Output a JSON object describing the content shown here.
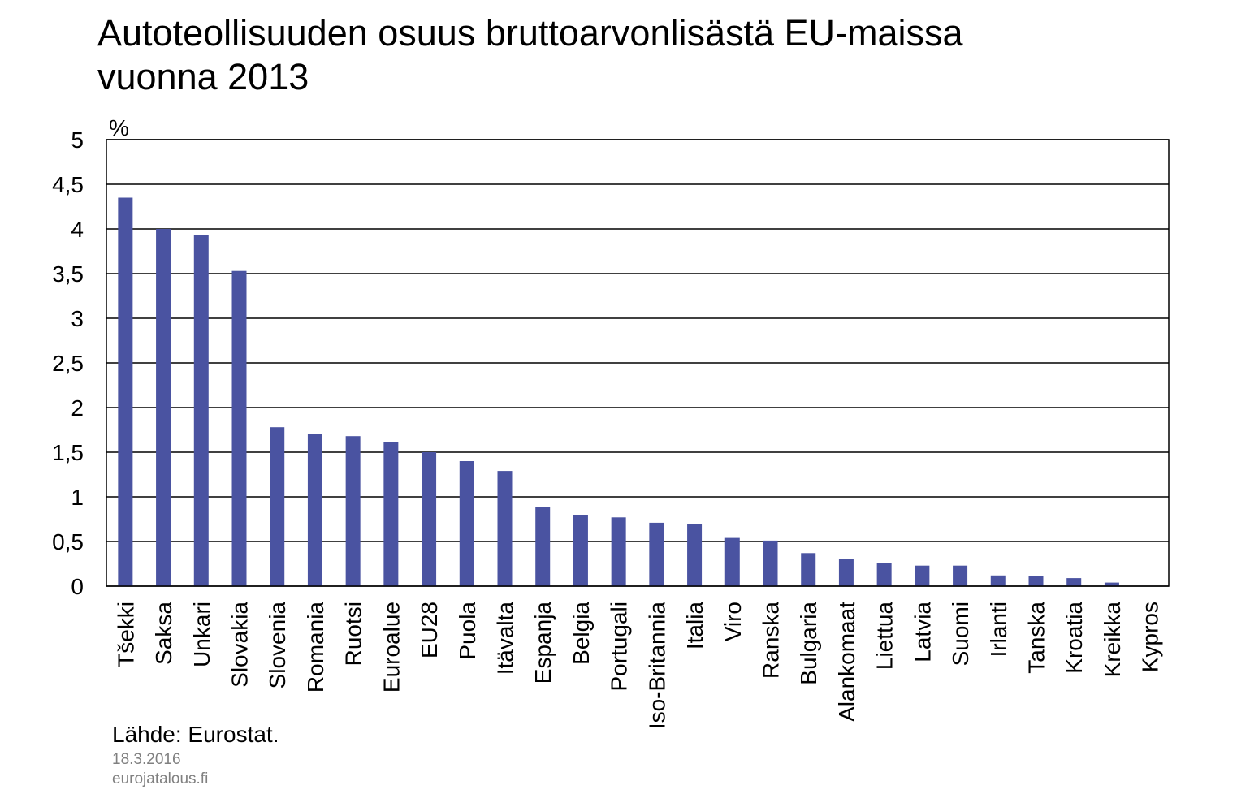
{
  "chart_data": {
    "type": "bar",
    "title_line1": "Autoteollisuuden osuus bruttoarvonlisästä EU-maissa",
    "title_line2": "vuonna 2013",
    "ylabel": "%",
    "xlabel": "",
    "ylim": [
      0,
      5
    ],
    "yticks": [
      0,
      0.5,
      1,
      1.5,
      2,
      2.5,
      3,
      3.5,
      4,
      4.5,
      5
    ],
    "ytick_labels": [
      "0",
      "0,5",
      "1",
      "1,5",
      "2",
      "2,5",
      "3",
      "3,5",
      "4",
      "4,5",
      "5"
    ],
    "grid": true,
    "categories": [
      "Tšekki",
      "Saksa",
      "Unkari",
      "Slovakia",
      "Slovenia",
      "Romania",
      "Ruotsi",
      "Euroalue",
      "EU28",
      "Puola",
      "Itävalta",
      "Espanja",
      "Belgia",
      "Portugali",
      "Iso-Britannia",
      "Italia",
      "Viro",
      "Ranska",
      "Bulgaria",
      "Alankomaat",
      "Liettua",
      "Latvia",
      "Suomi",
      "Irlanti",
      "Tanska",
      "Kroatia",
      "Kreikka",
      "Kypros"
    ],
    "values": [
      4.35,
      4.0,
      3.93,
      3.53,
      1.78,
      1.7,
      1.68,
      1.61,
      1.5,
      1.4,
      1.29,
      0.89,
      0.8,
      0.77,
      0.71,
      0.7,
      0.54,
      0.51,
      0.37,
      0.3,
      0.26,
      0.23,
      0.23,
      0.12,
      0.11,
      0.09,
      0.04,
      0.0
    ],
    "bar_color": "#4a53a1",
    "grid_color": "#000000"
  },
  "footer": {
    "source": "Lähde:  Eurostat.",
    "date": "18.3.2016",
    "site": "eurojatalous.fi"
  }
}
